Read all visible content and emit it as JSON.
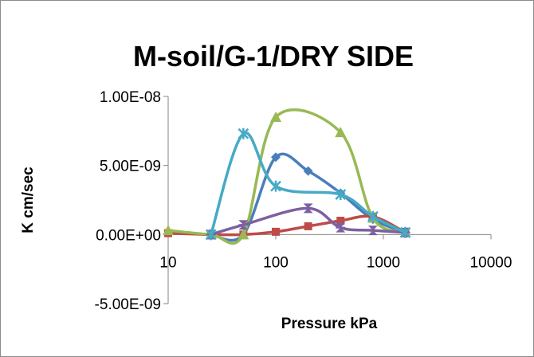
{
  "chart_data": {
    "type": "scatter",
    "title": "M-soil/G-1/DRY SIDE",
    "xlabel": "Pressure kPa",
    "ylabel": "K cm/sec",
    "x_scale": "log",
    "xlim": [
      10,
      10000
    ],
    "ylim": [
      -5e-09,
      1e-08
    ],
    "x_ticks": [
      10,
      100,
      1000,
      10000
    ],
    "x_tick_labels": [
      "10",
      "100",
      "1000",
      "10000"
    ],
    "y_ticks": [
      -5e-09,
      0,
      5e-09,
      1e-08
    ],
    "y_tick_labels": [
      "-5.00E-09",
      "0.00E+00",
      "5.00E-09",
      "1.00E-08"
    ],
    "grid": false,
    "legend": "none",
    "smooth_lines": true,
    "series": [
      {
        "color": "#4a7ebb",
        "marker": "diamond",
        "x": [
          25,
          50,
          100,
          200,
          400,
          800,
          1600
        ],
        "y": [
          0,
          0,
          5.6e-09,
          4.6e-09,
          3e-09,
          1.1e-09,
          1.5e-10
        ]
      },
      {
        "color": "#be4b48",
        "marker": "square",
        "x": [
          10,
          25,
          50,
          100,
          200,
          400,
          800,
          1600
        ],
        "y": [
          1e-10,
          0,
          0,
          2e-10,
          6e-10,
          1e-09,
          1.3e-09,
          1.5e-10
        ]
      },
      {
        "color": "#98b954",
        "marker": "triangle",
        "x": [
          10,
          25,
          50,
          100,
          400,
          800,
          1600
        ],
        "y": [
          3e-10,
          0,
          0,
          8.5e-09,
          7.4e-09,
          1.2e-09,
          1.5e-10
        ]
      },
      {
        "color": "#7d60a0",
        "marker": "x",
        "x": [
          25,
          50,
          200,
          400,
          800,
          1600
        ],
        "y": [
          0,
          7e-10,
          1.9e-09,
          5e-10,
          3e-10,
          1.5e-10
        ]
      },
      {
        "color": "#46aac5",
        "marker": "star",
        "x": [
          25,
          50,
          100,
          400,
          800,
          1600
        ],
        "y": [
          0,
          7.3e-09,
          3.5e-09,
          2.9e-09,
          1.3e-09,
          1.5e-10
        ]
      }
    ]
  }
}
